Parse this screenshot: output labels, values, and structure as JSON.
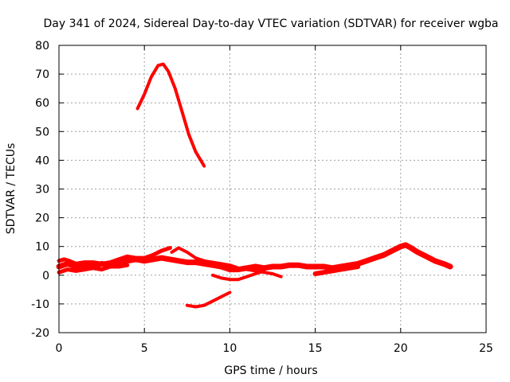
{
  "chart_data": {
    "type": "line",
    "title": "Day 341 of 2024, Sidereal Day-to-day VTEC variation (SDTVAR) for receiver wgba",
    "xlabel": "GPS time / hours",
    "ylabel": "SDTVAR / TECUs",
    "xlim": [
      0,
      25
    ],
    "ylim": [
      -20,
      80
    ],
    "grid": true,
    "legend": "none",
    "xticks": [
      "0",
      "5",
      "10",
      "15",
      "20",
      "25"
    ],
    "yticks": [
      "-20",
      "-10",
      "0",
      "10",
      "20",
      "30",
      "40",
      "50",
      "60",
      "70",
      "80"
    ],
    "series_color": "#ff0000",
    "series": [
      {
        "name": "peak",
        "x": [
          4.6,
          5.0,
          5.4,
          5.8,
          6.1,
          6.4,
          6.8,
          7.2,
          7.6,
          8.0,
          8.5
        ],
        "y": [
          58,
          63,
          69,
          73,
          73.5,
          71,
          65,
          57,
          49,
          43,
          38
        ]
      },
      {
        "name": "band-main",
        "x": [
          0,
          0.5,
          1.0,
          1.5,
          2.0,
          2.5,
          3.0,
          3.5,
          4.0,
          4.5,
          5.0,
          5.5,
          6.0,
          6.5,
          7.0,
          7.5,
          8.0,
          8.5,
          9.0,
          9.5,
          10.0,
          10.5,
          11.0,
          11.5,
          12.0,
          12.5,
          13.0,
          13.5,
          14.0,
          14.5,
          15.0,
          15.5,
          16.0,
          16.5,
          17.0,
          17.5,
          18.0,
          18.5,
          19.0,
          19.5,
          20.0,
          20.3,
          20.6,
          21.0,
          21.5,
          22.0,
          22.5,
          22.9
        ],
        "y": [
          3,
          4,
          3,
          3.5,
          3,
          4,
          3.5,
          4.5,
          5,
          5.5,
          5,
          5.5,
          6,
          5.5,
          5,
          4.5,
          4.5,
          4,
          3.5,
          3,
          2,
          2,
          2.5,
          3,
          2.5,
          3,
          3,
          3.5,
          3.5,
          3,
          3,
          3,
          2.5,
          3,
          3.5,
          4,
          5,
          6,
          7,
          8.5,
          10,
          10.5,
          9.5,
          8,
          6.5,
          5,
          4,
          3
        ]
      },
      {
        "name": "band-upper",
        "x": [
          0,
          0.3,
          0.6,
          1.0,
          1.5,
          2.0,
          2.5,
          3.0,
          3.5,
          4.0,
          4.5,
          5.0,
          5.5,
          6.0,
          6.5
        ],
        "y": [
          5,
          5.5,
          5,
          4,
          4.5,
          4.5,
          4,
          4.5,
          5.5,
          6.5,
          6,
          6,
          7,
          8.5,
          9.5
        ]
      },
      {
        "name": "band-lower",
        "x": [
          0,
          0.5,
          1.0,
          1.5,
          2.0,
          2.5,
          3.0,
          3.5,
          4.0
        ],
        "y": [
          1,
          2,
          1.5,
          2,
          2.5,
          2,
          3,
          3,
          3.5
        ]
      },
      {
        "name": "branch-a",
        "x": [
          6.6,
          7.0,
          7.5,
          8.0,
          8.5,
          9.0,
          9.5,
          10.0,
          10.5,
          11.0,
          11.5,
          12.0,
          12.5,
          13.0
        ],
        "y": [
          8,
          9.5,
          8,
          6,
          5,
          4.5,
          4,
          3.5,
          2.5,
          2,
          1.5,
          1,
          0.5,
          -0.5
        ]
      },
      {
        "name": "branch-b",
        "x": [
          9.0,
          9.5,
          10.0,
          10.5,
          11.0,
          11.5,
          12.0
        ],
        "y": [
          0,
          -1,
          -1.5,
          -1.5,
          -0.5,
          0.5,
          1.5
        ]
      },
      {
        "name": "low-segment",
        "x": [
          7.5,
          8.0,
          8.5,
          9.0,
          9.5,
          10.0
        ],
        "y": [
          -10.5,
          -11,
          -10.5,
          -9,
          -7.5,
          -6
        ]
      },
      {
        "name": "band-thin",
        "x": [
          15.0,
          15.5,
          16.0,
          16.5,
          17.0,
          17.5
        ],
        "y": [
          0.5,
          1,
          1.5,
          2,
          2.5,
          3
        ]
      }
    ]
  }
}
